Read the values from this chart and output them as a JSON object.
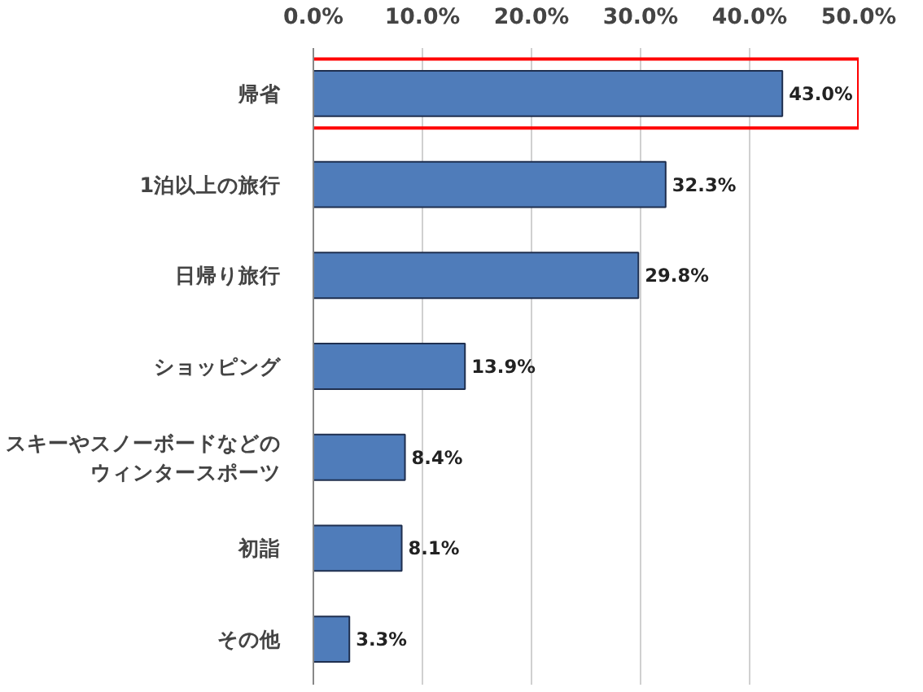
{
  "chart_data": {
    "type": "bar",
    "orientation": "horizontal",
    "categories": [
      "帰省",
      "1泊以上の旅行",
      "日帰り旅行",
      "ショッピング",
      "スキーやスノーボードなどのウィンタースポーツ",
      "初詣",
      "その他"
    ],
    "values": [
      43.0,
      32.3,
      29.8,
      13.9,
      8.4,
      8.1,
      3.3
    ],
    "value_labels": [
      "43.0%",
      "32.3%",
      "29.8%",
      "13.9%",
      "8.4%",
      "8.1%",
      "3.3%"
    ],
    "color": "#4f7cba",
    "xlim": [
      0,
      50
    ],
    "xticks": [
      {
        "value": 0,
        "label": "0.0%"
      },
      {
        "value": 10,
        "label": "10.0%"
      },
      {
        "value": 20,
        "label": "20.0%"
      },
      {
        "value": 30,
        "label": "30.0%"
      },
      {
        "value": 40,
        "label": "40.0%"
      },
      {
        "value": 50,
        "label": "50.0%"
      }
    ],
    "grid": "x"
  }
}
